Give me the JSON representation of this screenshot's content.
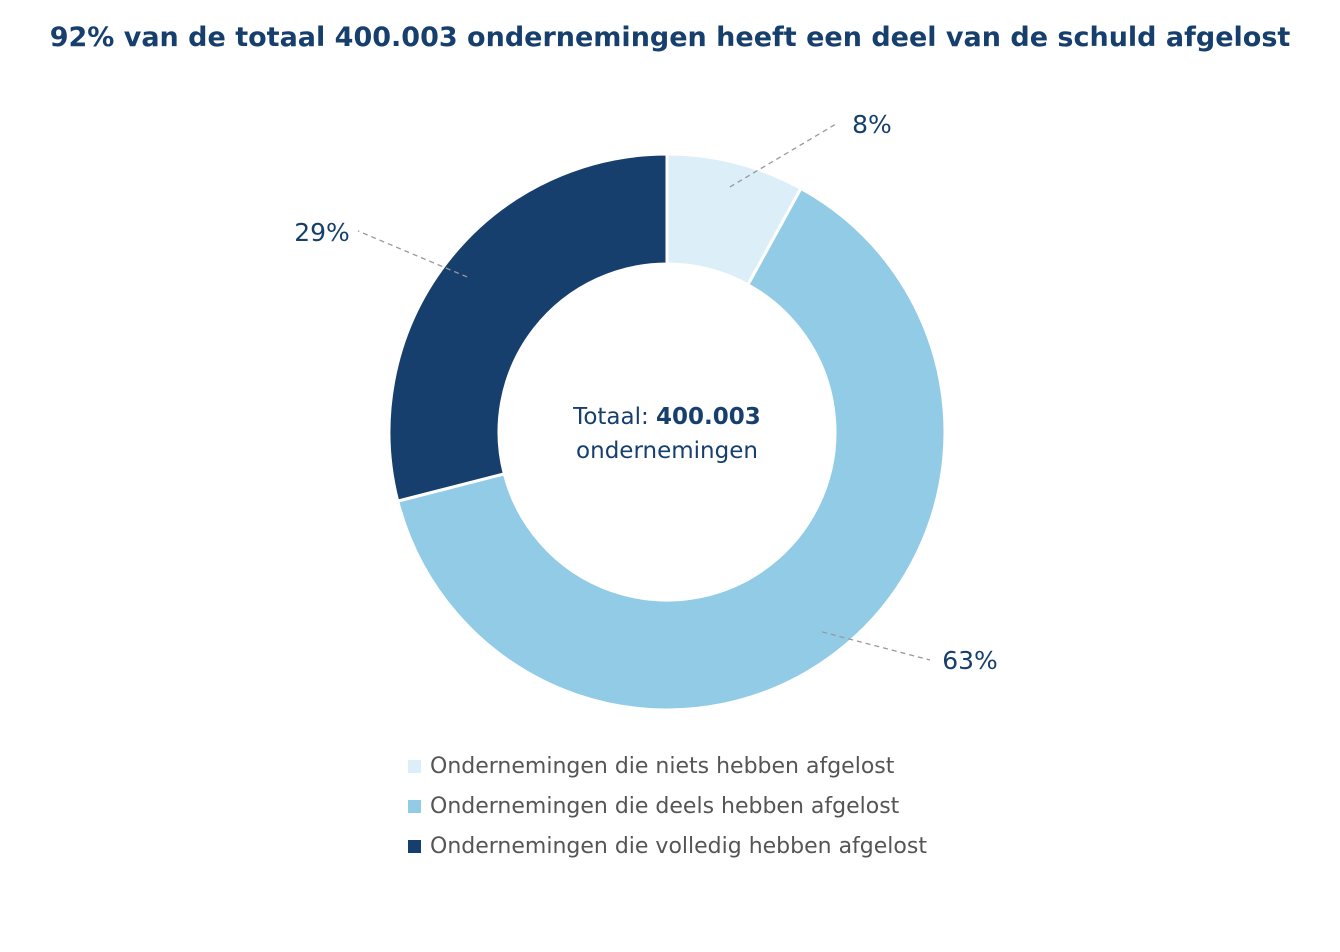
{
  "chart_data": {
    "type": "pie",
    "title": "92% van de totaal 400.003 ondernemingen heeft een deel van de schuld afgelost",
    "center_label": {
      "prefix": "Totaal: ",
      "value": "400.003",
      "suffix": "ondernemingen"
    },
    "categories": [
      "Ondernemingen die niets hebben afgelost",
      "Ondernemingen die deels hebben afgelost",
      "Ondernemingen die volledig hebben afgelost"
    ],
    "values": [
      8,
      63,
      29
    ],
    "value_labels": [
      "8%",
      "63%",
      "29%"
    ],
    "colors": [
      "#dceef8",
      "#92cbe6",
      "#173f6e"
    ],
    "legend_position": "bottom"
  }
}
